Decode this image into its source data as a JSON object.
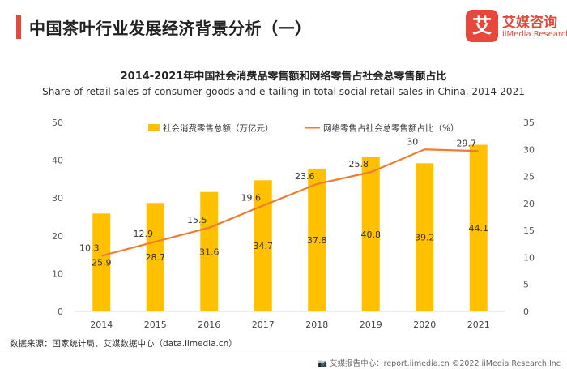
{
  "header": {
    "title": "中国茶叶行业发展经济背景分析（一）"
  },
  "logo": {
    "mark": "艾",
    "name_cn": "艾媒咨询",
    "name_en": "iiMedia Research"
  },
  "chart_data": {
    "type": "bar+line",
    "title": "2014-2021年中国社会消费品零售额和网络零售占社会总零售额占比",
    "subtitle": "Share of retail sales of consumer goods and e-tailing in total social retail sales in China, 2014-2021",
    "categories": [
      "2014",
      "2015",
      "2016",
      "2017",
      "2018",
      "2019",
      "2020",
      "2021"
    ],
    "series": [
      {
        "name": "社会消费零售总额（万亿元）",
        "type": "bar",
        "axis": "left",
        "color": "#ffc000",
        "values": [
          25.9,
          28.7,
          31.6,
          34.7,
          37.8,
          40.8,
          39.2,
          44.1
        ]
      },
      {
        "name": "网络零售占社会总零售额占比（%）",
        "type": "line",
        "axis": "right",
        "color": "#ed7d31",
        "values": [
          10.3,
          12.9,
          15.5,
          19.6,
          23.6,
          25.8,
          30,
          29.7
        ]
      }
    ],
    "y_left": {
      "min": 0,
      "max": 50,
      "ticks": [
        "0",
        "10",
        "20",
        "30",
        "40",
        "50"
      ]
    },
    "y_right": {
      "min": 0,
      "max": 35,
      "ticks": [
        "0",
        "5",
        "10",
        "15",
        "20",
        "25",
        "30",
        "35"
      ]
    },
    "legend_position": "top",
    "grid": false
  },
  "source": "数据来源：国家统计局、艾媒数据中心（data.iimedia.cn）",
  "footer": "艾媒报告中心：report.iimedia.cn  ©2022  iiMedia Research  Inc"
}
